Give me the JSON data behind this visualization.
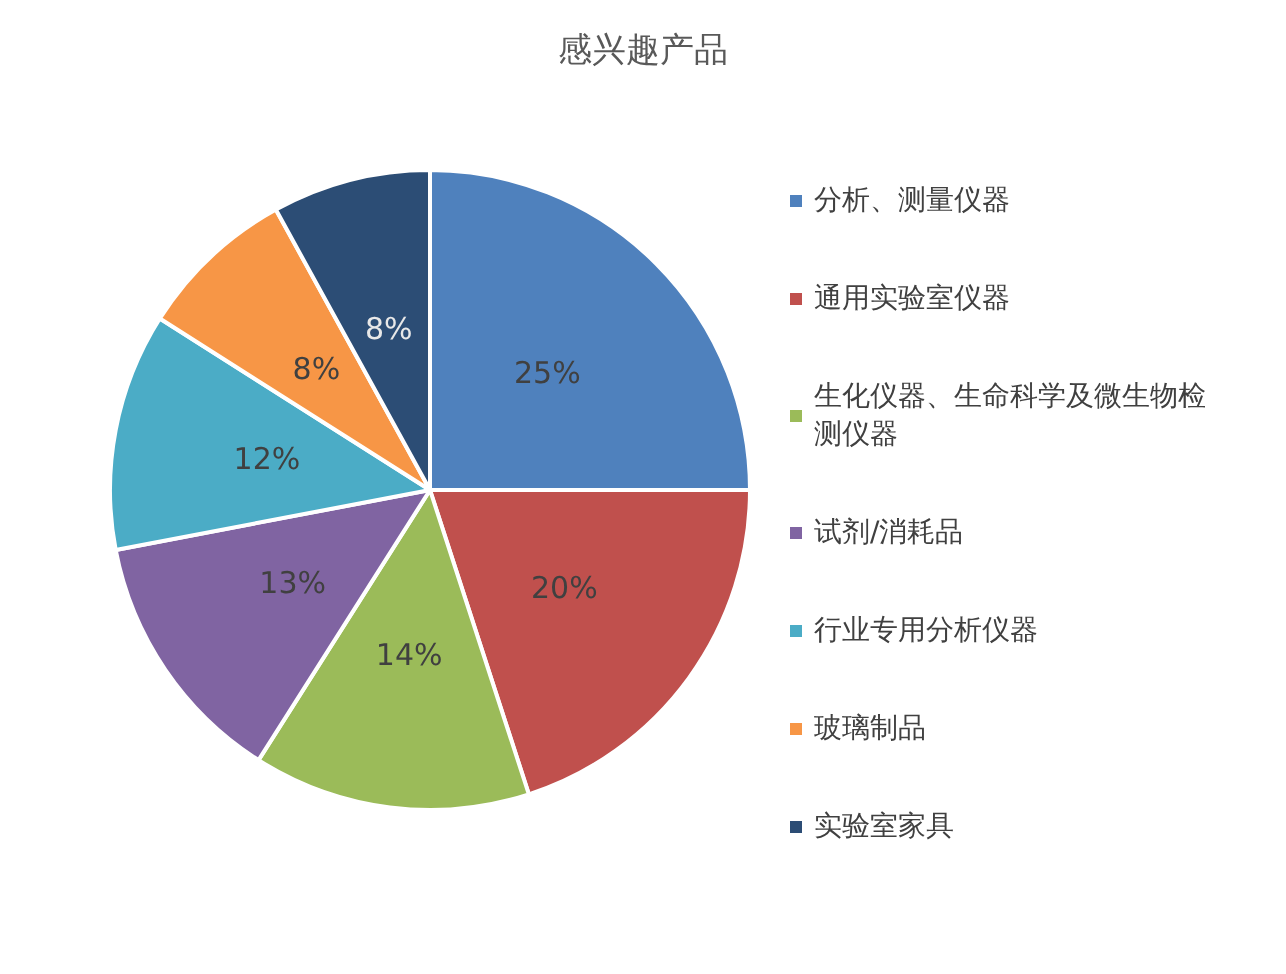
{
  "chart_data": {
    "type": "pie",
    "title": "感兴趣产品",
    "categories": [
      "分析、测量仪器",
      "通用实验室仪器",
      "生化仪器、生命科学及微生物检测仪器",
      "试剂/消耗品",
      "行业专用分析仪器",
      "玻璃制品",
      "实验室家具"
    ],
    "values": [
      25,
      20,
      14,
      13,
      12,
      8,
      8
    ],
    "colors": [
      "#4f81bd",
      "#c0504d",
      "#9bbb59",
      "#8064a2",
      "#4bacc6",
      "#f79646",
      "#2c4d75"
    ],
    "value_labels": [
      "25%",
      "20%",
      "14%",
      "13%",
      "12%",
      "8%",
      "8%"
    ],
    "legend": "right"
  }
}
